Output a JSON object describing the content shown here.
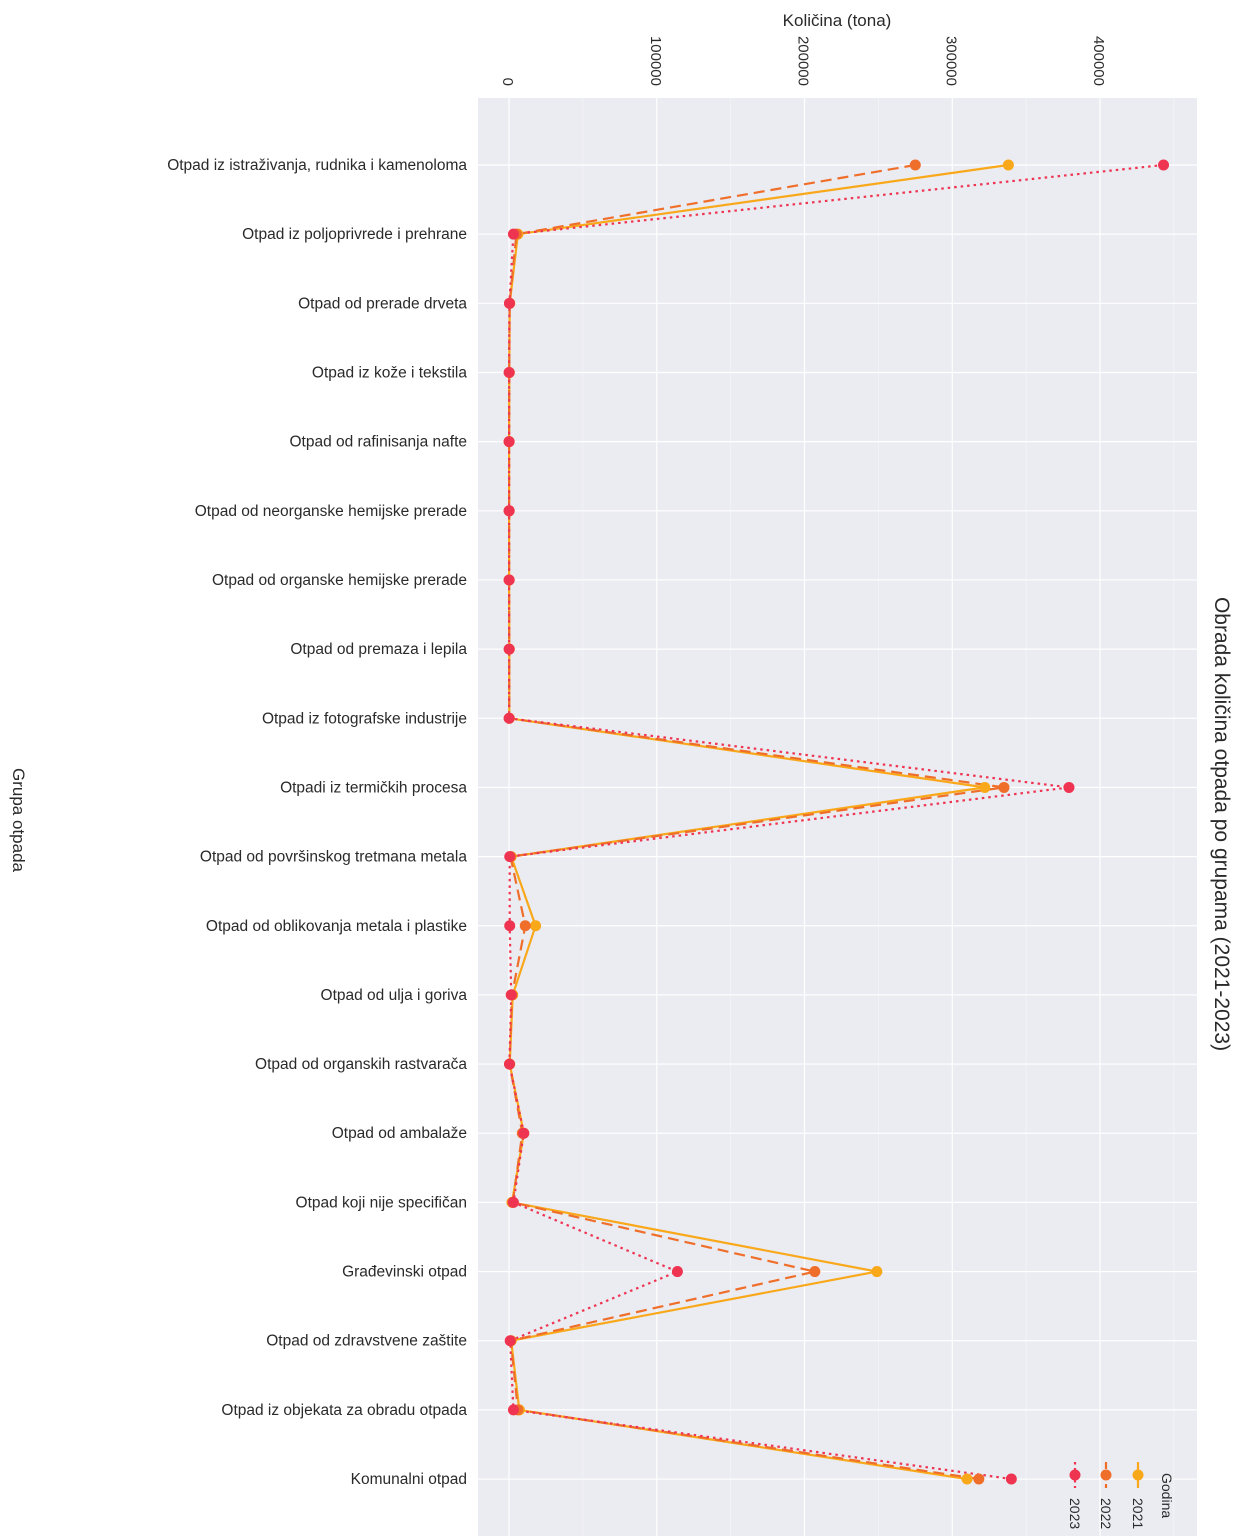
{
  "chart_data": {
    "type": "line",
    "title": "Obrada količina otpada po grupama (2021-2023)",
    "xlabel": "Grupa otpada",
    "ylabel": "Količina (tona)",
    "ylim": [
      -25000,
      465000
    ],
    "yticks": [
      0,
      100000,
      200000,
      300000,
      400000
    ],
    "ytick_labels": [
      "0",
      "100000",
      "200000",
      "300000",
      "400000"
    ],
    "grid": true,
    "legend": {
      "title": "Godina",
      "position": "bottom-right"
    },
    "categories": [
      "Otpad iz istraživanja, rudnika i kamenoloma",
      "Otpad iz poljoprivrede i prehrane",
      "Otpad od prerade drveta",
      "Otpad iz kože i tekstila",
      "Otpad od rafinisanja nafte",
      "Otpad od neorganske hemijske prerade",
      "Otpad od organske hemijske prerade",
      "Otpad od premaza i lepila",
      "Otpad iz fotografske industrije",
      "Otpadi iz termičkih procesa",
      "Otpad od površinskog tretmana metala",
      "Otpad od oblikovanja metala i plastike",
      "Otpad od ulja i goriva",
      "Otpad od organskih rastvarača",
      "Otpad od ambalaže",
      "Otpad koji nije specifičan",
      "Građevinski otpad",
      "Otpad od zdravstvene zaštite",
      "Otpad iz objekata za obradu otpada",
      "Komunalni otpad"
    ],
    "series": [
      {
        "name": "2021",
        "color": "#f9a81a",
        "dash": "solid",
        "values": [
          338000,
          6000,
          500,
          200,
          100,
          100,
          100,
          200,
          200,
          322000,
          1500,
          18000,
          2500,
          500,
          10000,
          2000,
          249000,
          1500,
          7000,
          310000
        ]
      },
      {
        "name": "2022",
        "color": "#ef6f2a",
        "dash": "dashed",
        "values": [
          275000,
          5000,
          400,
          150,
          80,
          100,
          100,
          150,
          150,
          335000,
          1000,
          11000,
          2000,
          400,
          9000,
          2500,
          207000,
          1200,
          6000,
          318000
        ]
      },
      {
        "name": "2023",
        "color": "#ee3450",
        "dash": "dotted",
        "values": [
          443000,
          3000,
          300,
          100,
          50,
          80,
          80,
          100,
          100,
          379000,
          500,
          500,
          1500,
          300,
          10000,
          3000,
          114000,
          800,
          3000,
          340000
        ]
      }
    ]
  }
}
